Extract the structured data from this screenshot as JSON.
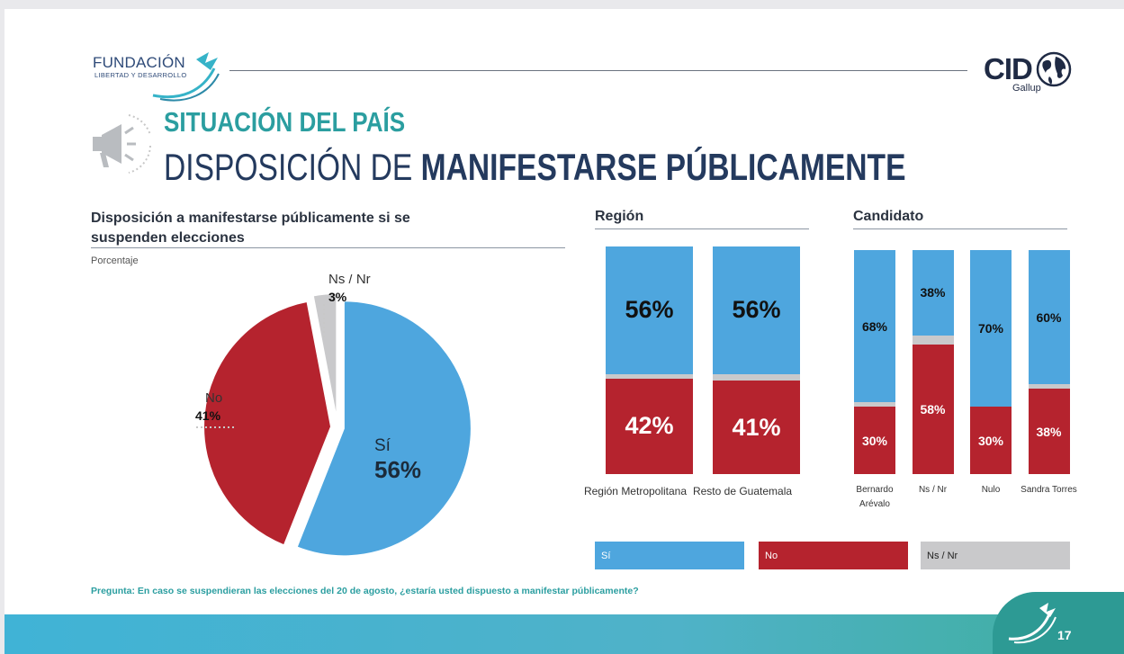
{
  "header": {
    "org_name": "FUNDACIÓN",
    "org_tagline": "LIBERTAD Y DESARROLLO",
    "pollster_name": "CID",
    "pollster_sub": "Gallup"
  },
  "title": {
    "kicker": "SITUACIÓN DEL PAÍS",
    "main_light": "DISPOSICIÓN DE ",
    "main_bold": "MANIFESTARSE PÚBLICAMENTE"
  },
  "colors": {
    "si": "#4ea6de",
    "no": "#b5232e",
    "ns": "#c9c9cb",
    "teal": "#2b9ea0",
    "navy": "#243a5e"
  },
  "chart_data": [
    {
      "type": "pie",
      "title": "Disposición a manifestarse públicamente si se suspenden elecciones",
      "unit_label": "Porcentaje",
      "slices": [
        {
          "key": "si",
          "name": "Sí",
          "value": 56,
          "label": "56%"
        },
        {
          "key": "no",
          "name": "No",
          "value": 41,
          "label": "41%"
        },
        {
          "key": "ns",
          "name": "Ns / Nr",
          "value": 3,
          "label": "3%"
        }
      ]
    },
    {
      "type": "bar",
      "stacked": true,
      "title": "Región",
      "categories": [
        "Región Metropolitana",
        "Resto de Guatemala"
      ],
      "series": [
        {
          "key": "si",
          "name": "Sí",
          "values": [
            56,
            56
          ],
          "labels": [
            "56%",
            "56%"
          ]
        },
        {
          "key": "ns",
          "name": "Ns / Nr",
          "values": [
            2,
            3
          ],
          "labels": [
            "",
            ""
          ]
        },
        {
          "key": "no",
          "name": "No",
          "values": [
            42,
            41
          ],
          "labels": [
            "42%",
            "41%"
          ]
        }
      ]
    },
    {
      "type": "bar",
      "stacked": true,
      "title": "Candidato",
      "categories": [
        "Bernardo Arévalo",
        "Ns / Nr",
        "Nulo",
        "Sandra Torres"
      ],
      "series": [
        {
          "key": "si",
          "name": "Sí",
          "values": [
            68,
            38,
            70,
            60
          ],
          "labels": [
            "68%",
            "38%",
            "70%",
            "60%"
          ]
        },
        {
          "key": "ns",
          "name": "Ns / Nr",
          "values": [
            2,
            4,
            0,
            2
          ],
          "labels": [
            "",
            "",
            "",
            ""
          ]
        },
        {
          "key": "no",
          "name": "No",
          "values": [
            30,
            58,
            30,
            38
          ],
          "labels": [
            "30%",
            "58%",
            "30%",
            "38%"
          ]
        }
      ]
    }
  ],
  "legend": [
    {
      "key": "si",
      "label": "Sí"
    },
    {
      "key": "no",
      "label": "No"
    },
    {
      "key": "ns",
      "label": "Ns / Nr"
    }
  ],
  "question": "Pregunta: En caso se suspendieran las elecciones del 20 de agosto, ¿estaría usted dispuesto a manifestar públicamente?",
  "page_number": "17"
}
